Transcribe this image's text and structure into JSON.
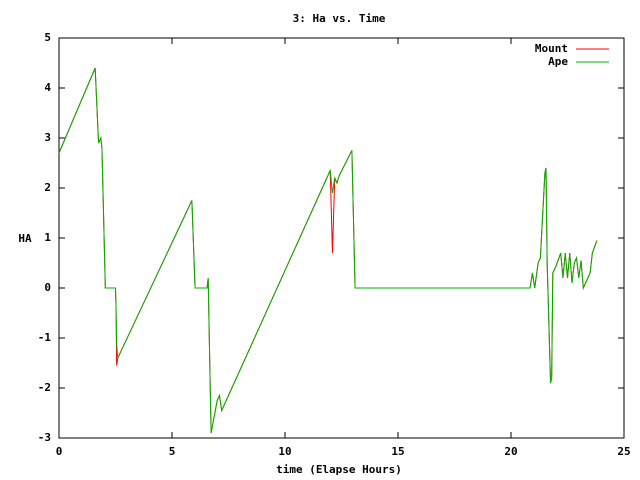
{
  "chart_data": {
    "type": "line",
    "title": "3: Ha vs. Time",
    "x_label": "time (Elapse Hours)",
    "y_label": "HA",
    "xlim": [
      0,
      25
    ],
    "xticks": [
      0,
      5,
      10,
      15,
      20,
      25
    ],
    "ylim": [
      -3,
      5
    ],
    "yticks": [
      -3,
      -2,
      -1,
      0,
      1,
      2,
      3,
      4,
      5
    ],
    "legend": "top-right",
    "series": [
      {
        "name": "Mount",
        "color": "#ff0000",
        "x": [
          0,
          1.6,
          1.7,
          1.75,
          1.85,
          1.9,
          2.05,
          2.5,
          2.52,
          2.55,
          2.6,
          5.88,
          6.02,
          6.55,
          6.6,
          6.73,
          7.0,
          7.1,
          7.2,
          12.0,
          12.1,
          12.2,
          12.3,
          12.4,
          12.96,
          13.1,
          20.84,
          20.95,
          21.05,
          21.2,
          21.3,
          21.5,
          21.55,
          21.6,
          21.75,
          21.8,
          21.85,
          22.0,
          22.2,
          22.3,
          22.4,
          22.5,
          22.6,
          22.7,
          22.8,
          22.9,
          23.0,
          23.1,
          23.2,
          23.4,
          23.5,
          23.6,
          23.8
        ],
        "values": [
          2.7,
          4.4,
          3.4,
          2.9,
          3.0,
          2.8,
          0,
          0,
          -0.3,
          -1.55,
          -1.4,
          1.75,
          0,
          0,
          0.2,
          -2.9,
          -2.25,
          -2.15,
          -2.45,
          2.35,
          0.7,
          2.2,
          2.1,
          2.25,
          2.75,
          0,
          0,
          0.3,
          0,
          0.5,
          0.6,
          2.3,
          2.4,
          0.5,
          -1.9,
          -1.8,
          0.3,
          0.45,
          0.7,
          0.2,
          0.7,
          0.2,
          0.7,
          0.1,
          0.5,
          0.6,
          0.2,
          0.55,
          0,
          0.2,
          0.3,
          0.7,
          0.95
        ]
      },
      {
        "name": "Ape",
        "color": "#00b000",
        "x": [
          0,
          1.6,
          1.7,
          1.75,
          1.85,
          1.9,
          2.05,
          2.5,
          2.52,
          2.55,
          2.6,
          5.88,
          6.02,
          6.55,
          6.6,
          6.73,
          7.0,
          7.1,
          7.2,
          12.0,
          12.1,
          12.2,
          12.3,
          12.4,
          12.96,
          13.1,
          20.84,
          20.95,
          21.05,
          21.2,
          21.3,
          21.5,
          21.55,
          21.6,
          21.75,
          21.8,
          21.85,
          22.0,
          22.2,
          22.3,
          22.4,
          22.5,
          22.6,
          22.7,
          22.8,
          22.9,
          23.0,
          23.1,
          23.2,
          23.4,
          23.5,
          23.6,
          23.8
        ],
        "values": [
          2.7,
          4.4,
          3.4,
          2.9,
          3.0,
          2.8,
          0,
          0,
          -0.3,
          -1.1,
          -1.4,
          1.75,
          0,
          0,
          0.2,
          -2.9,
          -2.25,
          -2.15,
          -2.45,
          2.35,
          1.9,
          2.2,
          2.1,
          2.25,
          2.75,
          0,
          0,
          0.3,
          0,
          0.5,
          0.6,
          2.3,
          2.4,
          0.5,
          -1.9,
          -1.8,
          0.3,
          0.45,
          0.7,
          0.2,
          0.7,
          0.2,
          0.7,
          0.1,
          0.5,
          0.6,
          0.2,
          0.55,
          0,
          0.2,
          0.3,
          0.7,
          0.95
        ]
      }
    ]
  }
}
